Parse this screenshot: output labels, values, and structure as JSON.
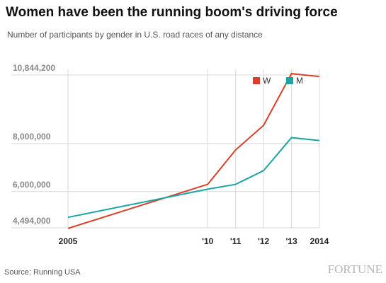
{
  "chart_data": {
    "type": "line",
    "title": "Women have been the running boom's driving force",
    "subtitle": "Number of participants by gender in U.S. road races of any distance",
    "source": "Source: Running USA",
    "brand": "FORTUNE",
    "x": [
      2005,
      2010,
      2011,
      2012,
      2013,
      2014
    ],
    "xlim": [
      2005,
      2014
    ],
    "xticks": [
      2005,
      {
        "value": 2010,
        "label": "'10"
      },
      {
        "value": 2011,
        "label": "'11"
      },
      {
        "value": 2012,
        "label": "'12"
      },
      {
        "value": 2013,
        "label": "'13"
      },
      2014
    ],
    "ylim": [
      4494000,
      10844200
    ],
    "yticks": [
      {
        "value": 4494000,
        "label": "4,494,000"
      },
      {
        "value": 6000000,
        "label": "6,000,000"
      },
      {
        "value": 8000000,
        "label": "8,000,000"
      },
      {
        "value": 10844200,
        "label": "10,844,200"
      }
    ],
    "grid": true,
    "legend": "top-right",
    "series": [
      {
        "name": "W",
        "color": "#d9402b",
        "values": [
          4470000,
          6300000,
          7730000,
          8750000,
          10900000,
          10780000
        ]
      },
      {
        "name": "M",
        "color": "#1aa5a5",
        "values": [
          4930000,
          6100000,
          6300000,
          6870000,
          8240000,
          8120000
        ]
      }
    ]
  }
}
